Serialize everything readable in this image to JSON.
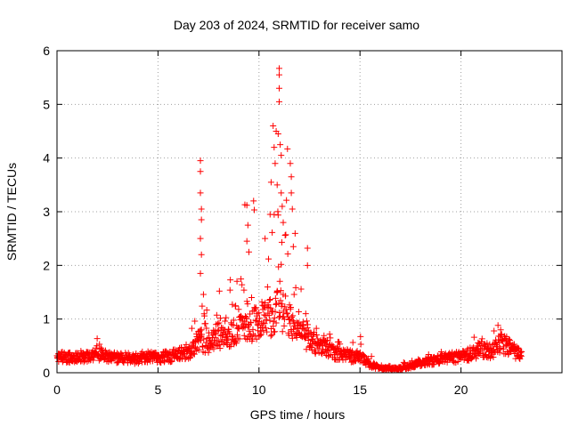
{
  "chart_data": {
    "type": "scatter",
    "title": "Day 203 of 2024, SRMTID for receiver samo",
    "xlabel": "GPS time / hours",
    "ylabel": "SRMTID / TECUs",
    "xlim": [
      0,
      25
    ],
    "ylim": [
      0,
      6
    ],
    "xticks": [
      0,
      5,
      10,
      15,
      20
    ],
    "yticks": [
      0,
      1,
      2,
      3,
      4,
      5,
      6
    ],
    "grid": true,
    "marker": "+",
    "color": "#ff0000",
    "x_range_of_data": [
      0,
      23
    ],
    "series": [
      {
        "name": "SRMTID",
        "profile_x": [
          0,
          0.5,
          1,
          1.5,
          2,
          2.5,
          3,
          3.5,
          4,
          4.5,
          5,
          5.5,
          6,
          6.5,
          7,
          7.5,
          8,
          8.5,
          9,
          9.5,
          10,
          10.5,
          11,
          11.5,
          12,
          12.5,
          13,
          13.5,
          14,
          14.5,
          15,
          15.5,
          16,
          16.5,
          17,
          17.5,
          18,
          18.5,
          19,
          19.5,
          20,
          20.5,
          21,
          21.5,
          22,
          22.5,
          23
        ],
        "profile_typical": [
          0.3,
          0.28,
          0.3,
          0.3,
          0.35,
          0.3,
          0.28,
          0.25,
          0.25,
          0.3,
          0.28,
          0.3,
          0.35,
          0.35,
          0.6,
          0.55,
          0.7,
          0.6,
          0.9,
          0.8,
          1.0,
          1.0,
          1.2,
          1.0,
          0.7,
          0.6,
          0.5,
          0.4,
          0.35,
          0.3,
          0.3,
          0.15,
          0.08,
          0.07,
          0.08,
          0.12,
          0.18,
          0.22,
          0.25,
          0.28,
          0.3,
          0.35,
          0.45,
          0.4,
          0.55,
          0.45,
          0.3
        ],
        "profile_upper": [
          0.45,
          0.35,
          0.42,
          0.38,
          0.78,
          0.45,
          0.4,
          0.38,
          0.38,
          0.5,
          0.42,
          0.42,
          0.45,
          0.55,
          3.9,
          1.2,
          1.8,
          1.5,
          3.1,
          2.0,
          4.6,
          3.0,
          5.7,
          3.9,
          2.3,
          1.3,
          1.2,
          0.8,
          0.6,
          0.6,
          0.7,
          0.35,
          0.15,
          0.15,
          0.18,
          0.25,
          0.3,
          0.35,
          0.4,
          0.45,
          0.45,
          0.55,
          0.95,
          0.7,
          1.0,
          0.7,
          0.4
        ],
        "highlight_points": [
          {
            "x": 7.1,
            "y": 3.95
          },
          {
            "x": 7.1,
            "y": 3.75
          },
          {
            "x": 7.1,
            "y": 3.35
          },
          {
            "x": 7.15,
            "y": 3.05
          },
          {
            "x": 7.15,
            "y": 2.85
          },
          {
            "x": 7.1,
            "y": 2.5
          },
          {
            "x": 7.15,
            "y": 2.2
          },
          {
            "x": 7.1,
            "y": 1.85
          },
          {
            "x": 9.3,
            "y": 3.13
          },
          {
            "x": 9.4,
            "y": 3.12
          },
          {
            "x": 9.45,
            "y": 2.75
          },
          {
            "x": 9.4,
            "y": 2.45
          },
          {
            "x": 9.5,
            "y": 2.25
          },
          {
            "x": 10.3,
            "y": 2.5
          },
          {
            "x": 10.55,
            "y": 2.95
          },
          {
            "x": 10.6,
            "y": 3.55
          },
          {
            "x": 10.7,
            "y": 4.6
          },
          {
            "x": 10.75,
            "y": 4.2
          },
          {
            "x": 10.8,
            "y": 3.9
          },
          {
            "x": 10.85,
            "y": 4.5
          },
          {
            "x": 10.9,
            "y": 3.5
          },
          {
            "x": 10.95,
            "y": 4.45
          },
          {
            "x": 11.0,
            "y": 5.67
          },
          {
            "x": 11.0,
            "y": 5.55
          },
          {
            "x": 11.0,
            "y": 5.3
          },
          {
            "x": 11.0,
            "y": 5.05
          },
          {
            "x": 11.05,
            "y": 4.25
          },
          {
            "x": 11.1,
            "y": 4.05
          },
          {
            "x": 11.1,
            "y": 3.35
          },
          {
            "x": 11.15,
            "y": 3.1
          },
          {
            "x": 11.2,
            "y": 2.8
          },
          {
            "x": 11.55,
            "y": 3.9
          },
          {
            "x": 11.6,
            "y": 3.65
          },
          {
            "x": 11.6,
            "y": 3.35
          },
          {
            "x": 11.65,
            "y": 3.05
          },
          {
            "x": 11.7,
            "y": 2.35
          },
          {
            "x": 12.4,
            "y": 2.32
          },
          {
            "x": 12.4,
            "y": 2.0
          }
        ]
      }
    ]
  }
}
